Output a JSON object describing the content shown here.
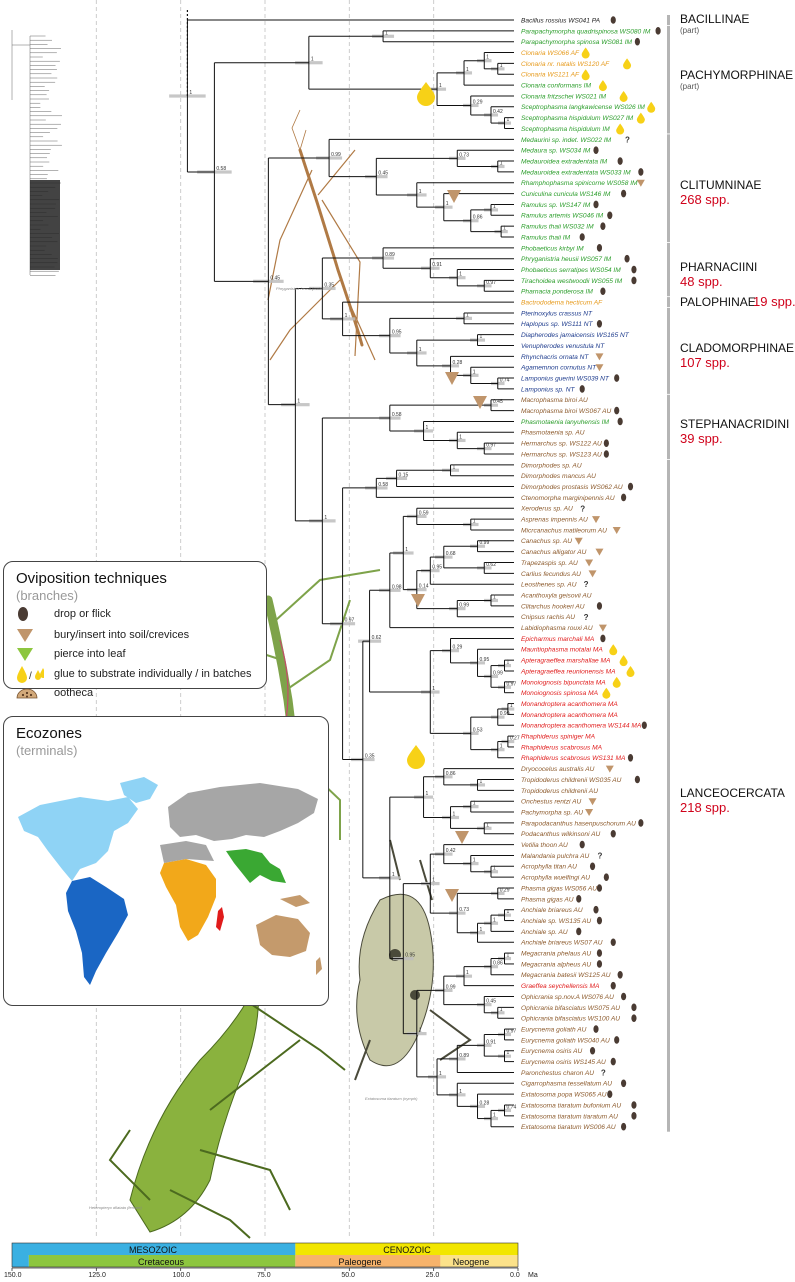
{
  "legend_ovi": {
    "title": "Oviposition techniques",
    "subtitle": "(branches)",
    "items": [
      {
        "label": "drop or flick",
        "icon": "dark-egg-icon"
      },
      {
        "label": "bury/insert into soil/crevices",
        "icon": "brown-triangle-icon"
      },
      {
        "label": "pierce into leaf",
        "icon": "green-triangle-icon"
      },
      {
        "label": "glue to substrate individually / in batches",
        "icon": "yellow-drop-icon"
      },
      {
        "label": "ootheca",
        "icon": "ootheca-icon"
      }
    ]
  },
  "legend_eco": {
    "title": "Ecozones",
    "subtitle": "(terminals)"
  },
  "colors": {
    "PA": "#222222",
    "IM": "#2a9d2a",
    "AF": "#e69a1c",
    "NT": "#1c3a8c",
    "AU": "#8c5a2c",
    "MA": "#e01b1b",
    "count": "#d0021b",
    "egg": "#4a3b33",
    "tri_brown": "#c0956b",
    "tri_green": "#8dc63f",
    "glue": "#f7d117",
    "mesozoic": "#3ab0e2",
    "cretaceous": "#8dc63f",
    "cenozoic": "#f2e600",
    "paleogene": "#f7b36b",
    "neogene": "#fce28a"
  },
  "clades": [
    {
      "name": "BACILLINAE",
      "sub": "(part)",
      "count": ""
    },
    {
      "name": "PACHYMORPHINAE",
      "sub": "(part)",
      "count": ""
    },
    {
      "name": "CLITUMNINAE",
      "sub": "",
      "count": "268 spp."
    },
    {
      "name": "PHARNACIINI",
      "sub": "",
      "count": "48 spp."
    },
    {
      "name": "PALOPHINAE",
      "sub": "",
      "count": "19 spp."
    },
    {
      "name": "CLADOMORPHINAE",
      "sub": "",
      "count": "107 spp."
    },
    {
      "name": "STEPHANACRIDINI",
      "sub": "",
      "count": "39 spp."
    },
    {
      "name": "LANCEOCERCATA",
      "sub": "",
      "count": "218 spp."
    }
  ],
  "timescale": {
    "eras": [
      "MESOZOIC",
      "CENOZOIC"
    ],
    "periods": [
      "Cretaceous",
      "Paleogene",
      "Neogene"
    ],
    "ticks": [
      "150.0",
      "125.0",
      "100.0",
      "75.0",
      "50.0",
      "25.0",
      "0.0"
    ],
    "unit": "Ma"
  },
  "credits": {
    "phryganistria": "Phryganistria heusii\n(male)",
    "eurycnema": "Eurycnema goliath\n(female)",
    "extatosoma": "Extatosoma tiaratum\n(nymph)",
    "heteropteryx": "Heteropteryx dilatata\n(female)"
  },
  "node_labels": [
    "1",
    "1",
    "1",
    "1",
    "1",
    "0.42",
    "0.29",
    "1",
    "1",
    "1",
    "0.73",
    "1",
    "1",
    "0.86",
    "1",
    "1",
    "0.45",
    "0.99",
    "0.97",
    "1",
    "0.91",
    "0.89",
    "0.74",
    "1",
    "0.28",
    "1",
    "1",
    "1",
    "0.95",
    "1",
    "0.35",
    "0.97",
    "1",
    "1",
    "0.45",
    "0.58",
    "1",
    "0.15",
    "0.58",
    "1",
    "0.59",
    "0.99",
    "0.62",
    "0.68",
    "0.95",
    "1",
    "0.99",
    "0.14",
    "1",
    "0.98",
    "1",
    "0.97",
    "0.99",
    "0.95",
    "0.29",
    "1",
    "0.99",
    "0.27",
    "1",
    "0.53",
    "1",
    "0.62",
    "1",
    "0.86",
    "1"
  ],
  "taxa": [
    {
      "name": "Bacillus rossius WS041 PA",
      "zone": "PA",
      "marks": [
        "egg"
      ]
    },
    {
      "name": "Parapachymorpha quadrispinosa WS080 IM",
      "zone": "IM",
      "marks": [
        "egg"
      ]
    },
    {
      "name": "Parapachymorpha spinosa WS081 IM",
      "zone": "IM",
      "marks": [
        "egg"
      ]
    },
    {
      "name": "Clonaria WS066 AF",
      "zone": "AF",
      "marks": [
        "glue"
      ]
    },
    {
      "name": "Clonaria nr. natalis WS120 AF",
      "zone": "AF",
      "marks": [
        "glue"
      ]
    },
    {
      "name": "Clonaria WS121 AF",
      "zone": "AF",
      "marks": [
        "glue"
      ]
    },
    {
      "name": "Clonaria conformans IM",
      "zone": "IM",
      "marks": [
        "glue"
      ]
    },
    {
      "name": "Clonaria fritzschei WS021 IM",
      "zone": "IM",
      "marks": [
        "glue"
      ]
    },
    {
      "name": "Sceptrophasma langkawicense WS026 IM",
      "zone": "IM",
      "marks": [
        "glue"
      ]
    },
    {
      "name": "Sceptrophasma hispidulum WS027 IM",
      "zone": "IM",
      "marks": [
        "glue"
      ]
    },
    {
      "name": "Sceptrophasma hispidulum IM",
      "zone": "IM",
      "marks": [
        "glue"
      ]
    },
    {
      "name": "Medaurini sp. indet. WS022 IM",
      "zone": "IM",
      "marks": [
        "q"
      ]
    },
    {
      "name": "Medaura sp. WS034 IM",
      "zone": "IM",
      "marks": [
        "egg"
      ]
    },
    {
      "name": "Medauroidea extradentata IM",
      "zone": "IM",
      "marks": [
        "egg"
      ]
    },
    {
      "name": "Medauroidea extradentata WS033 IM",
      "zone": "IM",
      "marks": [
        "egg"
      ]
    },
    {
      "name": "Rhamphophasma spinicorne WS058 IM",
      "zone": "IM",
      "marks": [
        "tri"
      ]
    },
    {
      "name": "Cuniculina cunicula WS146 IM",
      "zone": "IM",
      "marks": [
        "egg"
      ]
    },
    {
      "name": "Ramulus sp. WS147 IM",
      "zone": "IM",
      "marks": [
        "egg"
      ]
    },
    {
      "name": "Ramulus artemis WS046 IM",
      "zone": "IM",
      "marks": [
        "egg"
      ]
    },
    {
      "name": "Ramulus thaii WS032 IM",
      "zone": "IM",
      "marks": [
        "egg"
      ]
    },
    {
      "name": "Ramulus thaii IM",
      "zone": "IM",
      "marks": [
        "egg"
      ]
    },
    {
      "name": "Phobaeticus kirbyi IM",
      "zone": "IM",
      "marks": [
        "egg"
      ]
    },
    {
      "name": "Phryganistria heusii WS057 IM",
      "zone": "IM",
      "marks": [
        "egg"
      ]
    },
    {
      "name": "Phobaeticus serratipes WS054 IM",
      "zone": "IM",
      "marks": [
        "egg"
      ]
    },
    {
      "name": "Tirachoidea westwoodii WS055 IM",
      "zone": "IM",
      "marks": [
        "egg"
      ]
    },
    {
      "name": "Pharnacia ponderosa IM",
      "zone": "IM",
      "marks": [
        "egg"
      ]
    },
    {
      "name": "Bactrododema hecticum AF",
      "zone": "AF",
      "marks": []
    },
    {
      "name": "Pterinoxylus crassus NT",
      "zone": "NT",
      "marks": []
    },
    {
      "name": "Haplopus sp. WS111 NT",
      "zone": "NT",
      "marks": [
        "egg"
      ]
    },
    {
      "name": "Diapherodes jamaicensis WS165 NT",
      "zone": "NT",
      "marks": []
    },
    {
      "name": "Venupherodes venustula NT",
      "zone": "NT",
      "marks": []
    },
    {
      "name": "Rhynchacris ornata NT",
      "zone": "NT",
      "marks": [
        "tri"
      ]
    },
    {
      "name": "Agamemnon cornutus NT",
      "zone": "NT",
      "marks": [
        "tri"
      ]
    },
    {
      "name": "Lamponius guerini WS039 NT",
      "zone": "NT",
      "marks": [
        "egg"
      ]
    },
    {
      "name": "Lamponius sp. NT",
      "zone": "NT",
      "marks": [
        "egg"
      ]
    },
    {
      "name": "Macrophasma biroi AU",
      "zone": "AU",
      "marks": []
    },
    {
      "name": "Macrophasma biroi WS067 AU",
      "zone": "AU",
      "marks": [
        "egg"
      ]
    },
    {
      "name": "Phasmotaenia lanyuhensis IM",
      "zone": "IM",
      "marks": [
        "egg"
      ]
    },
    {
      "name": "Phasmotaenia sp. AU",
      "zone": "AU",
      "marks": []
    },
    {
      "name": "Hermarchus sp. WS122 AU",
      "zone": "AU",
      "marks": [
        "egg"
      ]
    },
    {
      "name": "Hermarchus sp. WS123 AU",
      "zone": "AU",
      "marks": [
        "egg"
      ]
    },
    {
      "name": "Dimorphodes sp. AU",
      "zone": "AU",
      "marks": []
    },
    {
      "name": "Dimorphodes mancus AU",
      "zone": "AU",
      "marks": []
    },
    {
      "name": "Dimorphodes prostasis WS062 AU",
      "zone": "AU",
      "marks": [
        "egg"
      ]
    },
    {
      "name": "Ctenomorpha marginipennis AU",
      "zone": "AU",
      "marks": [
        "egg"
      ]
    },
    {
      "name": "Xeroderus sp. AU",
      "zone": "AU",
      "marks": [
        "q"
      ]
    },
    {
      "name": "Asprenas impennis AU",
      "zone": "AU",
      "marks": [
        "tri"
      ]
    },
    {
      "name": "Micrcanachus matileorum AU",
      "zone": "AU",
      "marks": [
        "tri"
      ]
    },
    {
      "name": "Canachus sp. AU",
      "zone": "AU",
      "marks": [
        "tri"
      ]
    },
    {
      "name": "Canachus alligator AU",
      "zone": "AU",
      "marks": [
        "tri"
      ]
    },
    {
      "name": "Trapezaspis sp. AU",
      "zone": "AU",
      "marks": [
        "tri"
      ]
    },
    {
      "name": "Carlius fecundus AU",
      "zone": "AU",
      "marks": [
        "tri"
      ]
    },
    {
      "name": "Leosthenes sp. AU",
      "zone": "AU",
      "marks": [
        "q"
      ]
    },
    {
      "name": "Acanthoxyla geisovii AU",
      "zone": "AU",
      "marks": []
    },
    {
      "name": "Clitarchus hookeri AU",
      "zone": "AU",
      "marks": [
        "egg"
      ]
    },
    {
      "name": "Cnipsus rachis AU",
      "zone": "AU",
      "marks": [
        "q"
      ]
    },
    {
      "name": "Labidiophasma rouxi AU",
      "zone": "AU",
      "marks": [
        "tri"
      ]
    },
    {
      "name": "Epicharmus marchali MA",
      "zone": "MA",
      "marks": [
        "egg"
      ]
    },
    {
      "name": "Mauritiophasma motalai MA",
      "zone": "MA",
      "marks": [
        "glue"
      ]
    },
    {
      "name": "Apteragraeffea marshallae MA",
      "zone": "MA",
      "marks": [
        "glue"
      ]
    },
    {
      "name": "Apteragraeffea reunionensis MA",
      "zone": "MA",
      "marks": [
        "glue"
      ]
    },
    {
      "name": "Monoiognosis bipunctata MA",
      "zone": "MA",
      "marks": [
        "glue"
      ]
    },
    {
      "name": "Monoiognosis spinosa MA",
      "zone": "MA",
      "marks": [
        "glue"
      ]
    },
    {
      "name": "Monandroptera acanthomera MA",
      "zone": "MA",
      "marks": []
    },
    {
      "name": "Monandroptera acanthomera MA",
      "zone": "MA",
      "marks": []
    },
    {
      "name": "Monandroptera acanthomera WS144 MA",
      "zone": "MA",
      "marks": [
        "egg"
      ]
    },
    {
      "name": "Rhaphiderus spiniger MA",
      "zone": "MA",
      "marks": []
    },
    {
      "name": "Rhaphiderus scabrosus MA",
      "zone": "MA",
      "marks": []
    },
    {
      "name": "Rhaphiderus scabrosus WS131 MA",
      "zone": "MA",
      "marks": [
        "egg"
      ]
    },
    {
      "name": "Dryococelus australis AU",
      "zone": "AU",
      "marks": [
        "tri"
      ]
    },
    {
      "name": "Tropidoderus childrenii WS035 AU",
      "zone": "AU",
      "marks": [
        "egg"
      ]
    },
    {
      "name": "Tropidoderus childrenii AU",
      "zone": "AU",
      "marks": []
    },
    {
      "name": "Onchestus rentzi AU",
      "zone": "AU",
      "marks": [
        "tri"
      ]
    },
    {
      "name": "Pachymorpha sp. AU",
      "zone": "AU",
      "marks": [
        "tri"
      ]
    },
    {
      "name": "Parapodacanthus hasenpuschorum AU",
      "zone": "AU",
      "marks": [
        "egg"
      ]
    },
    {
      "name": "Podacanthus wilkinsoni AU",
      "zone": "AU",
      "marks": [
        "egg"
      ]
    },
    {
      "name": "Vetilia thoon AU",
      "zone": "AU",
      "marks": [
        "egg"
      ]
    },
    {
      "name": "Malandania pulchra AU",
      "zone": "AU",
      "marks": [
        "q"
      ]
    },
    {
      "name": "Acrophylla titan AU",
      "zone": "AU",
      "marks": [
        "egg"
      ]
    },
    {
      "name": "Acrophylla wuelfingi AU",
      "zone": "AU",
      "marks": [
        "egg"
      ]
    },
    {
      "name": "Phasma gigas WS056 AU",
      "zone": "AU",
      "marks": [
        "egg"
      ]
    },
    {
      "name": "Phasma gigas AU",
      "zone": "AU",
      "marks": [
        "egg"
      ]
    },
    {
      "name": "Anchiale briareus AU",
      "zone": "AU",
      "marks": [
        "egg"
      ]
    },
    {
      "name": "Anchiale sp. WS135 AU",
      "zone": "AU",
      "marks": [
        "egg"
      ]
    },
    {
      "name": "Anchiale sp. AU",
      "zone": "AU",
      "marks": [
        "egg"
      ]
    },
    {
      "name": "Anchiale briareus WS07 AU",
      "zone": "AU",
      "marks": [
        "egg"
      ]
    },
    {
      "name": "Megacrania phelaus AU",
      "zone": "AU",
      "marks": [
        "egg"
      ]
    },
    {
      "name": "Megacrania alpheus AU",
      "zone": "AU",
      "marks": [
        "egg"
      ]
    },
    {
      "name": "Megacrania batesii WS125 AU",
      "zone": "AU",
      "marks": [
        "egg"
      ]
    },
    {
      "name": "Graeffea seychellensis MA",
      "zone": "MA",
      "marks": [
        "egg"
      ]
    },
    {
      "name": "Ophicrania sp.nov.A WS076 AU",
      "zone": "AU",
      "marks": [
        "egg"
      ]
    },
    {
      "name": "Ophicrania bifasciatus WS075 AU",
      "zone": "AU",
      "marks": [
        "egg"
      ]
    },
    {
      "name": "Ophicrania bifasciatus WS100 AU",
      "zone": "AU",
      "marks": [
        "egg"
      ]
    },
    {
      "name": "Eurycnema goliath AU",
      "zone": "AU",
      "marks": [
        "egg"
      ]
    },
    {
      "name": "Eurycnema goliath WS040 AU",
      "zone": "AU",
      "marks": [
        "egg"
      ]
    },
    {
      "name": "Eurycnema osiris AU",
      "zone": "AU",
      "marks": [
        "egg"
      ]
    },
    {
      "name": "Eurycnema osiris WS145 AU",
      "zone": "AU",
      "marks": [
        "egg"
      ]
    },
    {
      "name": "Paronchestus charon AU",
      "zone": "AU",
      "marks": [
        "q"
      ]
    },
    {
      "name": "Cigarrophasma tessellatum AU",
      "zone": "AU",
      "marks": [
        "egg"
      ]
    },
    {
      "name": "Extatosoma popa WS065 AU",
      "zone": "AU",
      "marks": [
        "egg"
      ]
    },
    {
      "name": "Extatosoma tiaratum bufonium AU",
      "zone": "AU",
      "marks": [
        "egg"
      ]
    },
    {
      "name": "Extatosoma tiaratum tiaratum AU",
      "zone": "AU",
      "marks": [
        "egg"
      ]
    },
    {
      "name": "Extatosoma tiaratum WS006 AU",
      "zone": "AU",
      "marks": [
        "egg"
      ]
    }
  ]
}
